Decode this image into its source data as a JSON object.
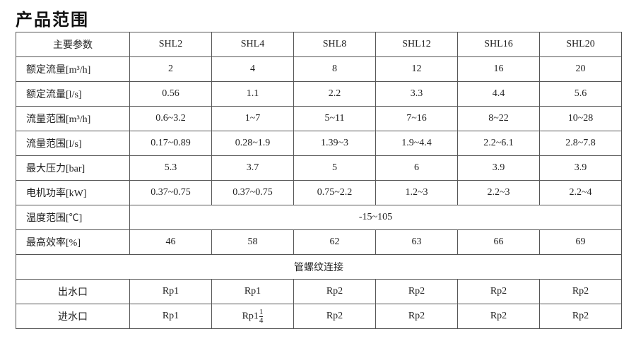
{
  "title": "产品范围",
  "header": [
    "主要参数",
    "SHL2",
    "SHL4",
    "SHL8",
    "SHL12",
    "SHL16",
    "SHL20"
  ],
  "rows": [
    {
      "label": "额定流量[m³/h]",
      "values": [
        "2",
        "4",
        "8",
        "12",
        "16",
        "20"
      ]
    },
    {
      "label": "额定流量[l/s]",
      "values": [
        "0.56",
        "1.1",
        "2.2",
        "3.3",
        "4.4",
        "5.6"
      ]
    },
    {
      "label": "流量范围[m³/h]",
      "values": [
        "0.6~3.2",
        "1~7",
        "5~11",
        "7~16",
        "8~22",
        "10~28"
      ]
    },
    {
      "label": "流量范围[l/s]",
      "values": [
        "0.17~0.89",
        "0.28~1.9",
        "1.39~3",
        "1.9~4.4",
        "2.2~6.1",
        "2.8~7.8"
      ]
    },
    {
      "label": "最大压力[bar]",
      "values": [
        "5.3",
        "3.7",
        "5",
        "6",
        "3.9",
        "3.9"
      ]
    },
    {
      "label": "电机功率[kW]",
      "values": [
        "0.37~0.75",
        "0.37~0.75",
        "0.75~2.2",
        "1.2~3",
        "2.2~3",
        "2.2~4"
      ]
    }
  ],
  "temperature": {
    "label": "温度范围[℃]",
    "value": "-15~105"
  },
  "efficiency": {
    "label": "最高效率[%]",
    "values": [
      "46",
      "58",
      "62",
      "63",
      "66",
      "69"
    ]
  },
  "thread_section": "管螺纹连接",
  "outlet": {
    "label": "出水口",
    "values": [
      "Rp1",
      "Rp1",
      "Rp2",
      "Rp2",
      "Rp2",
      "Rp2"
    ]
  },
  "inlet": {
    "label": "进水口",
    "values": [
      "Rp1",
      "Rp1",
      "Rp2",
      "Rp2",
      "Rp2",
      "Rp2"
    ],
    "shl4_fraction": {
      "numerator": "1",
      "denominator": "4"
    }
  }
}
